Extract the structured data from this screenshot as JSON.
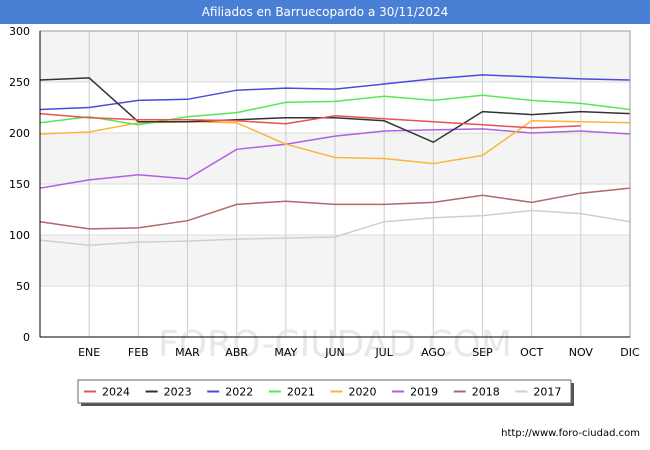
{
  "chart_data": {
    "type": "line",
    "title": "Afiliados en Barruecopardo a 30/11/2024",
    "xlabel": "",
    "ylabel": "",
    "ylim": [
      0,
      300
    ],
    "yticks": [
      0,
      50,
      100,
      150,
      200,
      250,
      300
    ],
    "categories": [
      "",
      "ENE",
      "FEB",
      "MAR",
      "ABR",
      "MAY",
      "JUN",
      "JUL",
      "AGO",
      "SEP",
      "OCT",
      "NOV",
      "DIC"
    ],
    "legend_position": "bottom",
    "grid": true,
    "series": [
      {
        "name": "2024",
        "color": "#e8524f",
        "values": [
          219,
          215,
          213,
          213,
          212,
          209,
          217,
          214,
          211,
          208,
          205,
          207,
          null
        ]
      },
      {
        "name": "2023",
        "color": "#333333",
        "values": [
          252,
          254,
          211,
          211,
          213,
          215,
          215,
          212,
          191,
          221,
          218,
          221,
          219
        ]
      },
      {
        "name": "2022",
        "color": "#4b4bdc",
        "values": [
          223,
          225,
          232,
          233,
          242,
          244,
          243,
          248,
          253,
          257,
          255,
          253,
          252
        ]
      },
      {
        "name": "2021",
        "color": "#55e855",
        "values": [
          210,
          216,
          208,
          216,
          220,
          230,
          231,
          236,
          232,
          237,
          232,
          229,
          223
        ]
      },
      {
        "name": "2020",
        "color": "#fbb53c",
        "values": [
          199,
          201,
          210,
          211,
          210,
          189,
          176,
          175,
          170,
          178,
          212,
          211,
          210
        ]
      },
      {
        "name": "2019",
        "color": "#b25ee6",
        "values": [
          146,
          154,
          159,
          155,
          184,
          189,
          197,
          202,
          203,
          204,
          200,
          202,
          199
        ]
      },
      {
        "name": "2018",
        "color": "#b0686a",
        "values": [
          113,
          106,
          107,
          114,
          130,
          133,
          130,
          130,
          132,
          139,
          132,
          141,
          146
        ]
      },
      {
        "name": "2017",
        "color": "#cfcfcf",
        "values": [
          95,
          90,
          93,
          94,
          96,
          97,
          98,
          113,
          117,
          119,
          124,
          121,
          113
        ]
      }
    ]
  },
  "footer": {
    "url": "http://www.foro-ciudad.com",
    "watermark": "FORO-CIUDAD.COM"
  }
}
